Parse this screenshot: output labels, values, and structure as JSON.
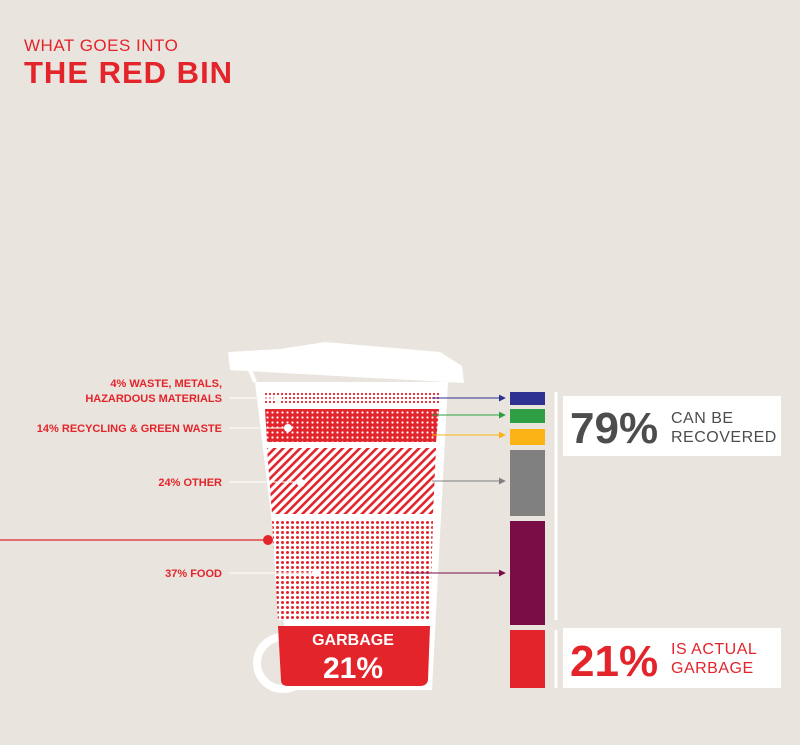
{
  "header": {
    "kicker": "WHAT GOES INTO",
    "title": "THE RED BIN"
  },
  "colors": {
    "brand_red": "#e3242b",
    "metals": "#2e3192",
    "recycling": "#2ea043",
    "green_waste": "#fbb316",
    "other": "#808080",
    "food": "#7a0d45",
    "garbage": "#e3242b",
    "background": "#e9e5de"
  },
  "chart_data": {
    "type": "bar",
    "layout": "stacked-vertical",
    "segments": [
      {
        "label": "4% WASTE, METALS,",
        "label_line2": "HAZARDOUS MATERIALS",
        "value": 4
      },
      {
        "label": "14% RECYCLING & GREEN WASTE",
        "value": 14
      },
      {
        "label": "24% OTHER",
        "value": 24
      },
      {
        "label": "37% FOOD",
        "value": 37
      },
      {
        "label": "GARBAGE",
        "value": 21,
        "value_text": "21%"
      }
    ],
    "summary": [
      {
        "value_text": "79%",
        "caption_line1": "CAN BE",
        "caption_line2": "RECOVERED"
      },
      {
        "value_text": "21%",
        "caption_line1": "IS ACTUAL",
        "caption_line2": "GARBAGE"
      }
    ]
  }
}
